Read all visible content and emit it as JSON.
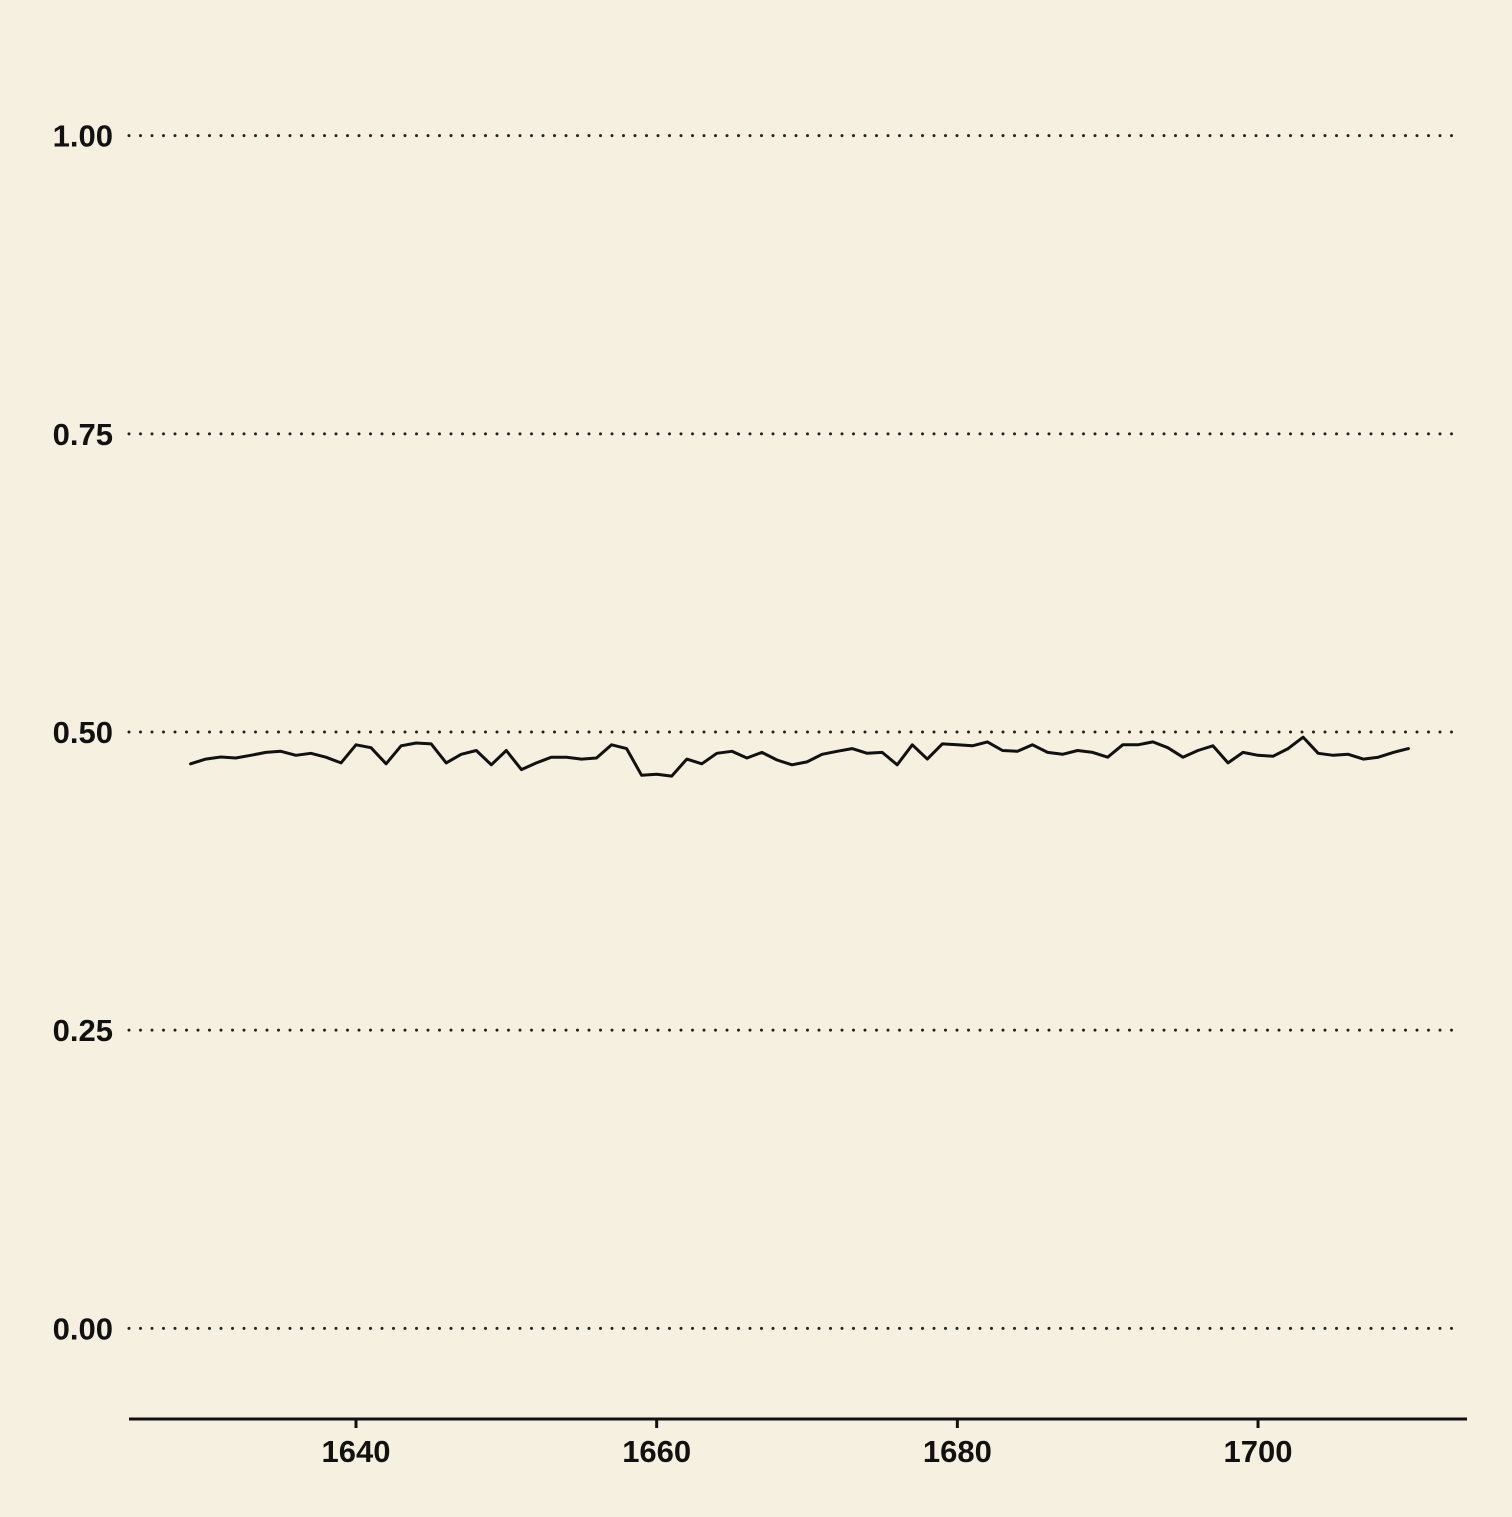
{
  "chart_data": {
    "type": "line",
    "title": "",
    "xlabel": "",
    "ylabel": "",
    "xlim": [
      1624.9,
      1713.9
    ],
    "ylim": [
      -0.05,
      1.05
    ],
    "xticks": [
      "1640",
      "1660",
      "1680",
      "1700"
    ],
    "yticks": [
      "0.00",
      "0.25",
      "0.50",
      "0.75",
      "1.00"
    ],
    "grid": "horizontal-dotted",
    "background_color": "#f6f0e0",
    "line_color": "#111111",
    "series": [
      {
        "x": [
          1629,
          1630,
          1631,
          1632,
          1633,
          1634,
          1635,
          1636,
          1637,
          1638,
          1639,
          1640,
          1641,
          1642,
          1643,
          1644,
          1645,
          1646,
          1647,
          1648,
          1649,
          1650,
          1651,
          1652,
          1653,
          1654,
          1655,
          1656,
          1657,
          1658,
          1659,
          1660,
          1661,
          1662,
          1663,
          1664,
          1665,
          1666,
          1667,
          1668,
          1669,
          1670,
          1671,
          1672,
          1673,
          1674,
          1675,
          1676,
          1677,
          1678,
          1679,
          1680,
          1681,
          1682,
          1683,
          1684,
          1685,
          1686,
          1687,
          1688,
          1689,
          1690,
          1691,
          1692,
          1693,
          1694,
          1695,
          1696,
          1697,
          1698,
          1699,
          1700,
          1701,
          1702,
          1703,
          1704,
          1705,
          1706,
          1707,
          1708,
          1709,
          1710
        ],
        "y": [
          0.4733,
          0.4773,
          0.479,
          0.4782,
          0.4805,
          0.4829,
          0.4838,
          0.4805,
          0.4821,
          0.4789,
          0.4741,
          0.4893,
          0.4868,
          0.4733,
          0.4884,
          0.4908,
          0.49,
          0.4741,
          0.4813,
          0.4845,
          0.4725,
          0.4845,
          0.4685,
          0.4741,
          0.4789,
          0.4789,
          0.4773,
          0.4782,
          0.4893,
          0.4861,
          0.4637,
          0.4645,
          0.463,
          0.4773,
          0.4733,
          0.4821,
          0.4838,
          0.4782,
          0.4829,
          0.4765,
          0.4725,
          0.4749,
          0.4813,
          0.4838,
          0.4861,
          0.4821,
          0.4829,
          0.4725,
          0.4893,
          0.4773,
          0.49,
          0.4893,
          0.4884,
          0.4917,
          0.4845,
          0.4838,
          0.4893,
          0.4829,
          0.4813,
          0.4845,
          0.4829,
          0.4789,
          0.4893,
          0.4893,
          0.4917,
          0.4868,
          0.4789,
          0.4845,
          0.4884,
          0.4741,
          0.4829,
          0.4805,
          0.4797,
          0.4861,
          0.4956,
          0.4821,
          0.4805,
          0.4813,
          0.4773,
          0.4789,
          0.4829,
          0.4861
        ]
      }
    ]
  }
}
